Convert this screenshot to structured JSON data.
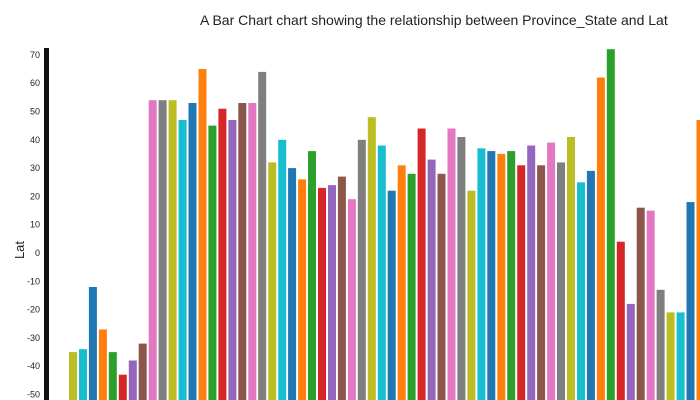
{
  "chart_data": {
    "type": "bar",
    "title": "A Bar Chart chart showing the relationship between Province_State and Lat",
    "xlabel": "",
    "ylabel": "Lat",
    "ylim": [
      -52,
      73
    ],
    "yticks": [
      -50,
      -40,
      -30,
      -20,
      -10,
      0,
      10,
      20,
      30,
      40,
      50,
      60,
      70
    ],
    "grid": false,
    "legend": "none",
    "palette": [
      "#bcbd22",
      "#17becf",
      "#1f77b4",
      "#ff7f0e",
      "#2ca02c",
      "#d62728",
      "#9467bd",
      "#8c564b",
      "#e377c2",
      "#7f7f7f"
    ],
    "values": [
      -35,
      -34,
      -12,
      -27,
      -35,
      -43,
      -38,
      -32,
      54,
      54,
      54,
      47,
      53,
      65,
      45,
      51,
      47,
      53,
      53,
      64,
      32,
      40,
      30,
      26,
      36,
      23,
      24,
      27,
      19,
      40,
      48,
      38,
      22,
      31,
      28,
      44,
      33,
      28,
      44,
      41,
      22,
      37,
      36,
      35,
      36,
      31,
      38,
      31,
      39,
      32,
      41,
      25,
      29,
      62,
      72,
      4,
      -18,
      16,
      15,
      -13,
      -21,
      -21,
      18,
      47
    ]
  }
}
